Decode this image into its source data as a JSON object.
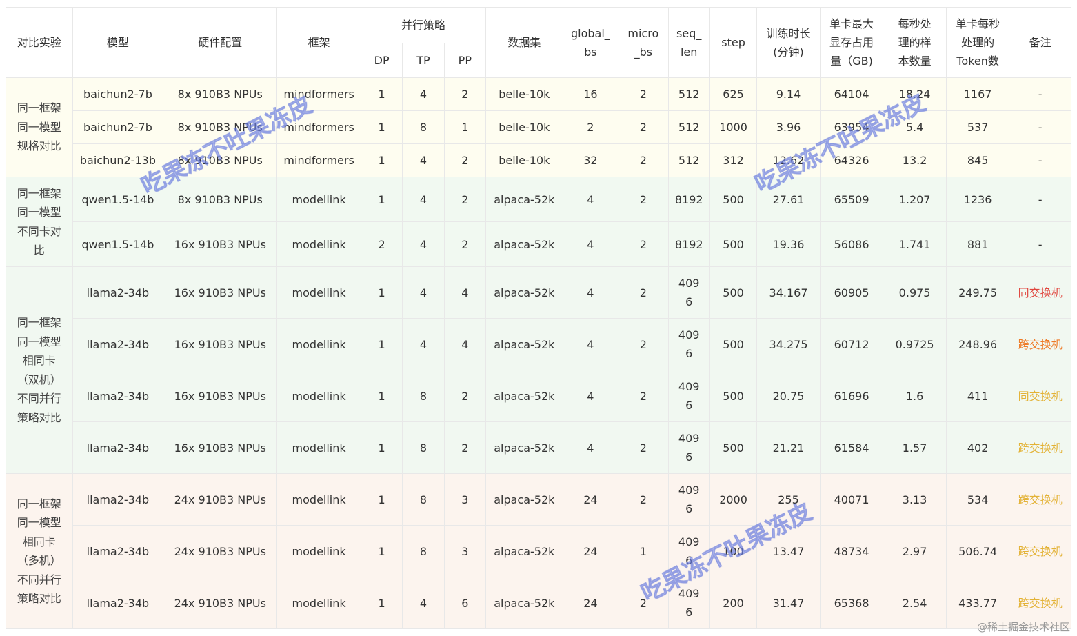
{
  "headers": {
    "experiment": "对比实验",
    "model": "模型",
    "hardware": "硬件配置",
    "framework": "框架",
    "parallel": "并行策略",
    "dp": "DP",
    "tp": "TP",
    "pp": "PP",
    "dataset": "数据集",
    "global_bs": "global_\nbs",
    "micro_bs": "micro\n_bs",
    "seq_len": "seq_\nlen",
    "step": "step",
    "train_time": "训练时长\n(分钟)",
    "mem": "单卡最大\n显存占用\n量（GB)",
    "samples": "每秒处\n理的样\n本数量",
    "tokens": "单卡每秒\n处理的\nToken数",
    "note": "备注"
  },
  "groups": [
    {
      "label": "同一框架\n同一模型\n规格对比",
      "rows": [
        {
          "model": "baichun2-7b",
          "hw": "8x  910B3 NPUs",
          "fw": "mindformers",
          "dp": "1",
          "tp": "4",
          "pp": "2",
          "ds": "belle-10k",
          "gbs": "16",
          "mbs": "2",
          "seq": "512",
          "step": "625",
          "time": "9.14",
          "mem": "64104",
          "sps": "18.24",
          "tok": "1167",
          "note": "-"
        },
        {
          "model": "baichun2-7b",
          "hw": "8x  910B3 NPUs",
          "fw": "mindformers",
          "dp": "1",
          "tp": "8",
          "pp": "1",
          "ds": "belle-10k",
          "gbs": "2",
          "mbs": "2",
          "seq": "512",
          "step": "1000",
          "time": "3.96",
          "mem": "63954",
          "sps": "5.4",
          "tok": "537",
          "note": "-"
        },
        {
          "model": "baichun2-13b",
          "hw": "8x  910B3 NPUs",
          "fw": "mindformers",
          "dp": "1",
          "tp": "4",
          "pp": "2",
          "ds": "belle-10k",
          "gbs": "32",
          "mbs": "2",
          "seq": "512",
          "step": "312",
          "time": "12.62",
          "mem": "64326",
          "sps": "13.2",
          "tok": "845",
          "note": "-"
        }
      ]
    },
    {
      "label": "同一框架\n同一模型\n不同卡对\n比",
      "rows": [
        {
          "model": "qwen1.5-14b",
          "hw": "8x  910B3 NPUs",
          "fw": "modellink",
          "dp": "1",
          "tp": "4",
          "pp": "2",
          "ds": "alpaca-52k",
          "gbs": "4",
          "mbs": "2",
          "seq": "8192",
          "step": "500",
          "time": "27.61",
          "mem": "65509",
          "sps": "1.207",
          "tok": "1236",
          "note": "-"
        },
        {
          "model": "qwen1.5-14b",
          "hw": "16x  910B3 NPUs",
          "fw": "modellink",
          "dp": "2",
          "tp": "4",
          "pp": "2",
          "ds": "alpaca-52k",
          "gbs": "4",
          "mbs": "2",
          "seq": "8192",
          "step": "500",
          "time": "19.36",
          "mem": "56086",
          "sps": "1.741",
          "tok": "881",
          "note": "-"
        }
      ]
    },
    {
      "label": "同一框架\n同一模型\n相同卡\n（双机）\n不同并行\n策略对比",
      "rows": [
        {
          "model": "llama2-34b",
          "hw": "16x  910B3 NPUs",
          "fw": "modellink",
          "dp": "1",
          "tp": "4",
          "pp": "4",
          "ds": "alpaca-52k",
          "gbs": "4",
          "mbs": "2",
          "seq": "409\n6",
          "step": "500",
          "time": "34.167",
          "mem": "60905",
          "sps": "0.975",
          "tok": "249.75",
          "note": "同交换机",
          "noteColor": "#e0463e"
        },
        {
          "model": "llama2-34b",
          "hw": "16x  910B3 NPUs",
          "fw": "modellink",
          "dp": "1",
          "tp": "4",
          "pp": "4",
          "ds": "alpaca-52k",
          "gbs": "4",
          "mbs": "2",
          "seq": "409\n6",
          "step": "500",
          "time": "34.275",
          "mem": "60712",
          "sps": "0.9725",
          "tok": "248.96",
          "note": "跨交换机",
          "noteColor": "#ee7a26"
        },
        {
          "model": "llama2-34b",
          "hw": "16x  910B3 NPUs",
          "fw": "modellink",
          "dp": "1",
          "tp": "8",
          "pp": "2",
          "ds": "alpaca-52k",
          "gbs": "4",
          "mbs": "2",
          "seq": "409\n6",
          "step": "500",
          "time": "20.75",
          "mem": "61696",
          "sps": "1.6",
          "tok": "411",
          "note": "同交换机",
          "noteColor": "#e3b236"
        },
        {
          "model": "llama2-34b",
          "hw": "16x  910B3 NPUs",
          "fw": "modellink",
          "dp": "1",
          "tp": "8",
          "pp": "2",
          "ds": "alpaca-52k",
          "gbs": "4",
          "mbs": "2",
          "seq": "409\n6",
          "step": "500",
          "time": "21.21",
          "mem": "61584",
          "sps": "1.57",
          "tok": "402",
          "note": "跨交换机",
          "noteColor": "#e3b236"
        }
      ]
    },
    {
      "label": "同一框架\n同一模型\n相同卡\n（多机）\n不同并行\n策略对比",
      "rows": [
        {
          "model": "llama2-34b",
          "hw": "24x  910B3 NPUs",
          "fw": "modellink",
          "dp": "1",
          "tp": "8",
          "pp": "3",
          "ds": "alpaca-52k",
          "gbs": "24",
          "mbs": "2",
          "seq": "409\n6",
          "step": "2000",
          "time": "255",
          "mem": "40071",
          "sps": "3.13",
          "tok": "534",
          "note": "跨交换机",
          "noteColor": "#e3b236"
        },
        {
          "model": "llama2-34b",
          "hw": "24x  910B3 NPUs",
          "fw": "modellink",
          "dp": "1",
          "tp": "8",
          "pp": "3",
          "ds": "alpaca-52k",
          "gbs": "24",
          "mbs": "1",
          "seq": "409\n6",
          "step": "100",
          "time": "13.47",
          "mem": "48734",
          "sps": "2.97",
          "tok": "506.74",
          "note": "跨交换机",
          "noteColor": "#e3b236"
        },
        {
          "model": "llama2-34b",
          "hw": "24x  910B3 NPUs",
          "fw": "modellink",
          "dp": "1",
          "tp": "4",
          "pp": "6",
          "ds": "alpaca-52k",
          "gbs": "24",
          "mbs": "2",
          "seq": "409\n6",
          "step": "200",
          "time": "31.47",
          "mem": "65368",
          "sps": "2.54",
          "tok": "433.77",
          "note": "跨交换机",
          "noteColor": "#e3b236"
        }
      ]
    }
  ],
  "watermark": "吃果冻不吐果冻皮",
  "credit": "@稀土掘金技术社区"
}
